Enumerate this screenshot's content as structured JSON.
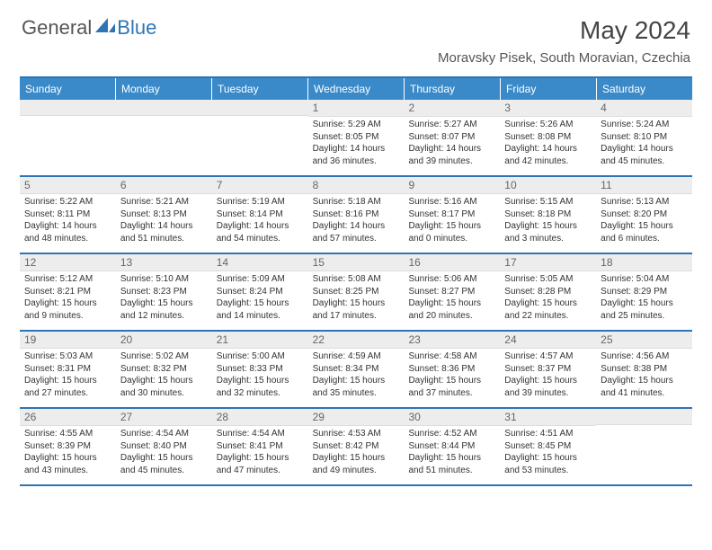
{
  "brand": {
    "text1": "General",
    "text2": "Blue"
  },
  "title": "May 2024",
  "location": "Moravsky Pisek, South Moravian, Czechia",
  "day_headers": [
    "Sunday",
    "Monday",
    "Tuesday",
    "Wednesday",
    "Thursday",
    "Friday",
    "Saturday"
  ],
  "colors": {
    "accent": "#2e75b6",
    "header_bg": "#3a8ac9",
    "daynum_bg": "#ededed",
    "text": "#333333",
    "title_text": "#444444"
  },
  "weeks": [
    [
      {
        "num": "",
        "sunrise": "",
        "sunset": "",
        "daylight": ""
      },
      {
        "num": "",
        "sunrise": "",
        "sunset": "",
        "daylight": ""
      },
      {
        "num": "",
        "sunrise": "",
        "sunset": "",
        "daylight": ""
      },
      {
        "num": "1",
        "sunrise": "Sunrise: 5:29 AM",
        "sunset": "Sunset: 8:05 PM",
        "daylight": "Daylight: 14 hours and 36 minutes."
      },
      {
        "num": "2",
        "sunrise": "Sunrise: 5:27 AM",
        "sunset": "Sunset: 8:07 PM",
        "daylight": "Daylight: 14 hours and 39 minutes."
      },
      {
        "num": "3",
        "sunrise": "Sunrise: 5:26 AM",
        "sunset": "Sunset: 8:08 PM",
        "daylight": "Daylight: 14 hours and 42 minutes."
      },
      {
        "num": "4",
        "sunrise": "Sunrise: 5:24 AM",
        "sunset": "Sunset: 8:10 PM",
        "daylight": "Daylight: 14 hours and 45 minutes."
      }
    ],
    [
      {
        "num": "5",
        "sunrise": "Sunrise: 5:22 AM",
        "sunset": "Sunset: 8:11 PM",
        "daylight": "Daylight: 14 hours and 48 minutes."
      },
      {
        "num": "6",
        "sunrise": "Sunrise: 5:21 AM",
        "sunset": "Sunset: 8:13 PM",
        "daylight": "Daylight: 14 hours and 51 minutes."
      },
      {
        "num": "7",
        "sunrise": "Sunrise: 5:19 AM",
        "sunset": "Sunset: 8:14 PM",
        "daylight": "Daylight: 14 hours and 54 minutes."
      },
      {
        "num": "8",
        "sunrise": "Sunrise: 5:18 AM",
        "sunset": "Sunset: 8:16 PM",
        "daylight": "Daylight: 14 hours and 57 minutes."
      },
      {
        "num": "9",
        "sunrise": "Sunrise: 5:16 AM",
        "sunset": "Sunset: 8:17 PM",
        "daylight": "Daylight: 15 hours and 0 minutes."
      },
      {
        "num": "10",
        "sunrise": "Sunrise: 5:15 AM",
        "sunset": "Sunset: 8:18 PM",
        "daylight": "Daylight: 15 hours and 3 minutes."
      },
      {
        "num": "11",
        "sunrise": "Sunrise: 5:13 AM",
        "sunset": "Sunset: 8:20 PM",
        "daylight": "Daylight: 15 hours and 6 minutes."
      }
    ],
    [
      {
        "num": "12",
        "sunrise": "Sunrise: 5:12 AM",
        "sunset": "Sunset: 8:21 PM",
        "daylight": "Daylight: 15 hours and 9 minutes."
      },
      {
        "num": "13",
        "sunrise": "Sunrise: 5:10 AM",
        "sunset": "Sunset: 8:23 PM",
        "daylight": "Daylight: 15 hours and 12 minutes."
      },
      {
        "num": "14",
        "sunrise": "Sunrise: 5:09 AM",
        "sunset": "Sunset: 8:24 PM",
        "daylight": "Daylight: 15 hours and 14 minutes."
      },
      {
        "num": "15",
        "sunrise": "Sunrise: 5:08 AM",
        "sunset": "Sunset: 8:25 PM",
        "daylight": "Daylight: 15 hours and 17 minutes."
      },
      {
        "num": "16",
        "sunrise": "Sunrise: 5:06 AM",
        "sunset": "Sunset: 8:27 PM",
        "daylight": "Daylight: 15 hours and 20 minutes."
      },
      {
        "num": "17",
        "sunrise": "Sunrise: 5:05 AM",
        "sunset": "Sunset: 8:28 PM",
        "daylight": "Daylight: 15 hours and 22 minutes."
      },
      {
        "num": "18",
        "sunrise": "Sunrise: 5:04 AM",
        "sunset": "Sunset: 8:29 PM",
        "daylight": "Daylight: 15 hours and 25 minutes."
      }
    ],
    [
      {
        "num": "19",
        "sunrise": "Sunrise: 5:03 AM",
        "sunset": "Sunset: 8:31 PM",
        "daylight": "Daylight: 15 hours and 27 minutes."
      },
      {
        "num": "20",
        "sunrise": "Sunrise: 5:02 AM",
        "sunset": "Sunset: 8:32 PM",
        "daylight": "Daylight: 15 hours and 30 minutes."
      },
      {
        "num": "21",
        "sunrise": "Sunrise: 5:00 AM",
        "sunset": "Sunset: 8:33 PM",
        "daylight": "Daylight: 15 hours and 32 minutes."
      },
      {
        "num": "22",
        "sunrise": "Sunrise: 4:59 AM",
        "sunset": "Sunset: 8:34 PM",
        "daylight": "Daylight: 15 hours and 35 minutes."
      },
      {
        "num": "23",
        "sunrise": "Sunrise: 4:58 AM",
        "sunset": "Sunset: 8:36 PM",
        "daylight": "Daylight: 15 hours and 37 minutes."
      },
      {
        "num": "24",
        "sunrise": "Sunrise: 4:57 AM",
        "sunset": "Sunset: 8:37 PM",
        "daylight": "Daylight: 15 hours and 39 minutes."
      },
      {
        "num": "25",
        "sunrise": "Sunrise: 4:56 AM",
        "sunset": "Sunset: 8:38 PM",
        "daylight": "Daylight: 15 hours and 41 minutes."
      }
    ],
    [
      {
        "num": "26",
        "sunrise": "Sunrise: 4:55 AM",
        "sunset": "Sunset: 8:39 PM",
        "daylight": "Daylight: 15 hours and 43 minutes."
      },
      {
        "num": "27",
        "sunrise": "Sunrise: 4:54 AM",
        "sunset": "Sunset: 8:40 PM",
        "daylight": "Daylight: 15 hours and 45 minutes."
      },
      {
        "num": "28",
        "sunrise": "Sunrise: 4:54 AM",
        "sunset": "Sunset: 8:41 PM",
        "daylight": "Daylight: 15 hours and 47 minutes."
      },
      {
        "num": "29",
        "sunrise": "Sunrise: 4:53 AM",
        "sunset": "Sunset: 8:42 PM",
        "daylight": "Daylight: 15 hours and 49 minutes."
      },
      {
        "num": "30",
        "sunrise": "Sunrise: 4:52 AM",
        "sunset": "Sunset: 8:44 PM",
        "daylight": "Daylight: 15 hours and 51 minutes."
      },
      {
        "num": "31",
        "sunrise": "Sunrise: 4:51 AM",
        "sunset": "Sunset: 8:45 PM",
        "daylight": "Daylight: 15 hours and 53 minutes."
      },
      {
        "num": "",
        "sunrise": "",
        "sunset": "",
        "daylight": ""
      }
    ]
  ]
}
